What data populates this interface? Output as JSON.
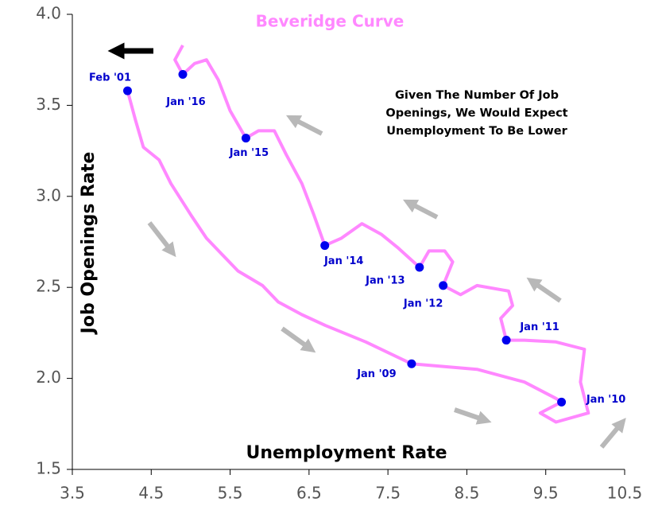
{
  "chart_data": {
    "type": "line",
    "title": "Beveridge Curve",
    "title_color": "#ff88ff",
    "x_label": "Unemployment Rate",
    "y_label": "Job Openings Rate",
    "annotation": [
      "Given The Number Of Job",
      "Openings, We Would Expect",
      "Unemployment To Be Lower"
    ],
    "xlim": [
      3.5,
      10.5
    ],
    "xticks": [
      3.5,
      4.5,
      5.5,
      6.5,
      7.5,
      8.5,
      9.5,
      10.5
    ],
    "ylim": [
      1.5,
      4.0
    ],
    "yticks": [
      1.5,
      {
        "value": 2,
        "label": "2.0"
      },
      2.5,
      {
        "value": 3,
        "label": "3.0"
      },
      3.5,
      {
        "value": 4,
        "label": "4.0"
      }
    ],
    "line_color": "#ff88ff",
    "point_color": "#0000ee",
    "x": [
      4.2,
      4.3,
      4.4,
      4.6,
      4.75,
      5.0,
      5.2,
      5.4,
      5.6,
      5.91,
      6.11,
      6.41,
      6.71,
      7.22,
      7.8,
      8.63,
      9.23,
      9.63,
      9.7,
      9.43,
      9.63,
      10.04,
      9.94,
      9.99,
      9.63,
      9.23,
      9.0,
      8.93,
      9.08,
      9.03,
      8.63,
      8.42,
      8.2,
      8.32,
      8.22,
      8.02,
      7.9,
      7.62,
      7.42,
      7.17,
      6.91,
      6.7,
      6.56,
      6.41,
      6.21,
      6.06,
      5.86,
      5.7,
      5.5,
      5.35,
      5.2,
      5.05,
      4.9,
      4.8,
      4.9
    ],
    "y": [
      3.58,
      3.42,
      3.27,
      3.2,
      3.07,
      2.9,
      2.77,
      2.68,
      2.59,
      2.51,
      2.42,
      2.35,
      2.29,
      2.2,
      2.08,
      2.05,
      1.98,
      1.89,
      1.87,
      1.81,
      1.76,
      1.81,
      1.98,
      2.16,
      2.2,
      2.21,
      2.21,
      2.33,
      2.4,
      2.48,
      2.51,
      2.46,
      2.51,
      2.64,
      2.7,
      2.7,
      2.61,
      2.72,
      2.79,
      2.85,
      2.77,
      2.73,
      2.9,
      3.07,
      3.23,
      3.36,
      3.36,
      3.32,
      3.47,
      3.64,
      3.75,
      3.73,
      3.67,
      3.75,
      3.83
    ],
    "points": [
      {
        "label": "Feb '01",
        "x": 4.2,
        "y": 3.58
      },
      {
        "label": "Jan '16",
        "x": 4.9,
        "y": 3.67
      },
      {
        "label": "Jan '15",
        "x": 5.7,
        "y": 3.32
      },
      {
        "label": "Jan '14",
        "x": 6.7,
        "y": 2.73
      },
      {
        "label": "Jan '13",
        "x": 7.9,
        "y": 2.61
      },
      {
        "label": "Jan '12",
        "x": 8.2,
        "y": 2.51
      },
      {
        "label": "Jan '11",
        "x": 9.0,
        "y": 2.21
      },
      {
        "label": "Jan '10",
        "x": 9.7,
        "y": 1.87
      },
      {
        "label": "Jan '09",
        "x": 7.8,
        "y": 2.08
      }
    ]
  }
}
